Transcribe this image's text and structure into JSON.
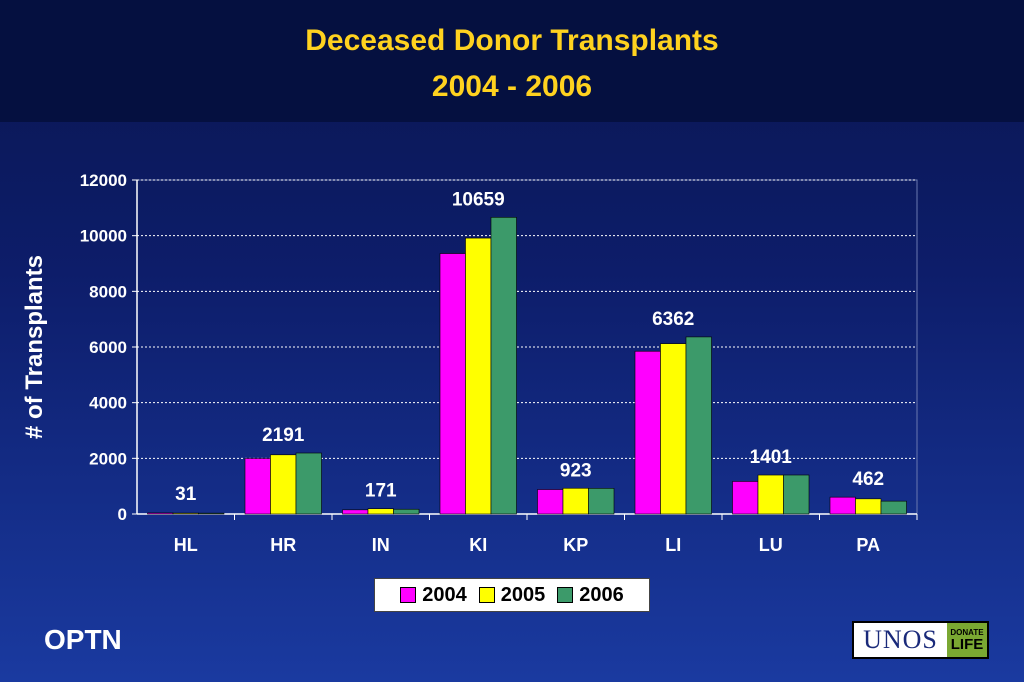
{
  "title": "Deceased Donor Transplants",
  "subtitle": "2004 - 2006",
  "footer_left": "OPTN",
  "logo": {
    "text": "UNOS",
    "badge_line1": "DONATE",
    "badge_line2": "LIFE"
  },
  "colors": {
    "2004": "#ff00ff",
    "2005": "#ffff00",
    "2006": "#3c9a6a"
  },
  "chart_data": {
    "type": "bar",
    "title": "Deceased Donor Transplants 2004 - 2006",
    "ylabel": "# of Transplants",
    "xlabel": "",
    "ylim": [
      0,
      12000
    ],
    "yticks": [
      0,
      2000,
      4000,
      6000,
      8000,
      10000,
      12000
    ],
    "grid": true,
    "legend_position": "bottom",
    "categories": [
      "HL",
      "HR",
      "IN",
      "KI",
      "KP",
      "LI",
      "LU",
      "PA"
    ],
    "series": [
      {
        "name": "2004",
        "values": [
          39,
          1996,
          150,
          9358,
          880,
          5847,
          1170,
          605
        ]
      },
      {
        "name": "2005",
        "values": [
          33,
          2127,
          190,
          9913,
          925,
          6120,
          1400,
          545
        ]
      },
      {
        "name": "2006",
        "values": [
          31,
          2191,
          171,
          10659,
          923,
          6362,
          1401,
          462
        ]
      }
    ],
    "data_labels": [
      "31",
      "2191",
      "171",
      "10659",
      "923",
      "6362",
      "1401",
      "462"
    ]
  }
}
